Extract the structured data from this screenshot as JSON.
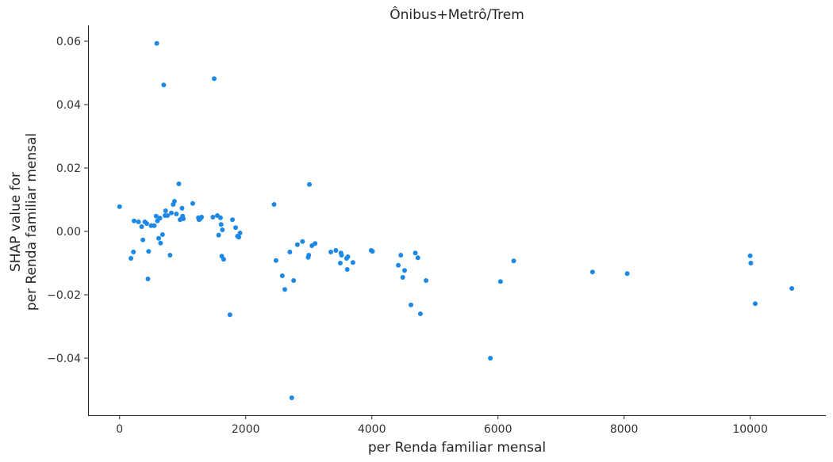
{
  "chart_data": {
    "type": "scatter",
    "title": "Ônibus+Metrô/Trem",
    "xlabel": "per Renda familiar mensal",
    "ylabel": [
      "SHAP value for",
      "per Renda familiar mensal"
    ],
    "xlim": [
      -500,
      11200
    ],
    "ylim": [
      -0.058,
      0.065
    ],
    "xticks": [
      0,
      2000,
      4000,
      6000,
      8000,
      10000
    ],
    "xtick_labels": [
      "0",
      "2000",
      "4000",
      "6000",
      "8000",
      "10000"
    ],
    "yticks": [
      -0.04,
      -0.02,
      0.0,
      0.02,
      0.04,
      0.06
    ],
    "ytick_labels": [
      "−0.04",
      "−0.02",
      "0.00",
      "0.02",
      "0.04",
      "0.06"
    ],
    "grid": false,
    "point_color": "#1e88e5",
    "points": [
      [
        0,
        0.0078
      ],
      [
        180,
        -0.0085
      ],
      [
        220,
        -0.0065
      ],
      [
        230,
        0.0033
      ],
      [
        300,
        0.003
      ],
      [
        350,
        0.0015
      ],
      [
        370,
        -0.0027
      ],
      [
        400,
        0.003
      ],
      [
        430,
        0.0025
      ],
      [
        450,
        -0.015
      ],
      [
        460,
        -0.0063
      ],
      [
        500,
        0.0018
      ],
      [
        550,
        0.0018
      ],
      [
        580,
        0.0048
      ],
      [
        590,
        0.0593
      ],
      [
        600,
        0.0033
      ],
      [
        620,
        -0.0022
      ],
      [
        640,
        0.0042
      ],
      [
        650,
        -0.0037
      ],
      [
        680,
        -0.001
      ],
      [
        700,
        0.0462
      ],
      [
        720,
        0.005
      ],
      [
        730,
        0.0065
      ],
      [
        760,
        0.005
      ],
      [
        800,
        -0.0075
      ],
      [
        820,
        0.0058
      ],
      [
        850,
        0.0085
      ],
      [
        870,
        0.0095
      ],
      [
        900,
        0.0055
      ],
      [
        940,
        0.015
      ],
      [
        960,
        0.0037
      ],
      [
        980,
        0.004
      ],
      [
        990,
        0.0073
      ],
      [
        1000,
        0.0048
      ],
      [
        1010,
        0.004
      ],
      [
        1160,
        0.0088
      ],
      [
        1250,
        0.0043
      ],
      [
        1260,
        0.0037
      ],
      [
        1280,
        0.004
      ],
      [
        1300,
        0.0045
      ],
      [
        1480,
        0.0045
      ],
      [
        1500,
        0.0482
      ],
      [
        1550,
        0.005
      ],
      [
        1570,
        -0.0012
      ],
      [
        1600,
        0.0043
      ],
      [
        1610,
        0.0022
      ],
      [
        1620,
        -0.0078
      ],
      [
        1630,
        0.0005
      ],
      [
        1650,
        -0.0088
      ],
      [
        1750,
        -0.0263
      ],
      [
        1790,
        0.0037
      ],
      [
        1840,
        0.0012
      ],
      [
        1870,
        -0.0015
      ],
      [
        1890,
        -0.0018
      ],
      [
        1910,
        -0.0005
      ],
      [
        2450,
        0.0085
      ],
      [
        2480,
        -0.0092
      ],
      [
        2580,
        -0.014
      ],
      [
        2620,
        -0.0183
      ],
      [
        2700,
        -0.0065
      ],
      [
        2730,
        -0.0525
      ],
      [
        2760,
        -0.0155
      ],
      [
        2820,
        -0.0042
      ],
      [
        2900,
        -0.0032
      ],
      [
        2990,
        -0.0082
      ],
      [
        3000,
        -0.0075
      ],
      [
        3010,
        0.0148
      ],
      [
        3050,
        -0.0045
      ],
      [
        3100,
        -0.0038
      ],
      [
        3350,
        -0.0065
      ],
      [
        3430,
        -0.006
      ],
      [
        3500,
        -0.01
      ],
      [
        3510,
        -0.0068
      ],
      [
        3520,
        -0.0075
      ],
      [
        3600,
        -0.0085
      ],
      [
        3610,
        -0.012
      ],
      [
        3620,
        -0.008
      ],
      [
        3700,
        -0.0098
      ],
      [
        3990,
        -0.006
      ],
      [
        4010,
        -0.0063
      ],
      [
        4420,
        -0.0107
      ],
      [
        4460,
        -0.0075
      ],
      [
        4490,
        -0.0145
      ],
      [
        4520,
        -0.0123
      ],
      [
        4620,
        -0.0232
      ],
      [
        4690,
        -0.0068
      ],
      [
        4730,
        -0.0083
      ],
      [
        4770,
        -0.026
      ],
      [
        4860,
        -0.0155
      ],
      [
        5880,
        -0.04
      ],
      [
        6040,
        -0.0158
      ],
      [
        6250,
        -0.0093
      ],
      [
        7500,
        -0.0128
      ],
      [
        8050,
        -0.0133
      ],
      [
        10000,
        -0.0077
      ],
      [
        10010,
        -0.01
      ],
      [
        10080,
        -0.0228
      ],
      [
        10660,
        -0.018
      ]
    ]
  }
}
